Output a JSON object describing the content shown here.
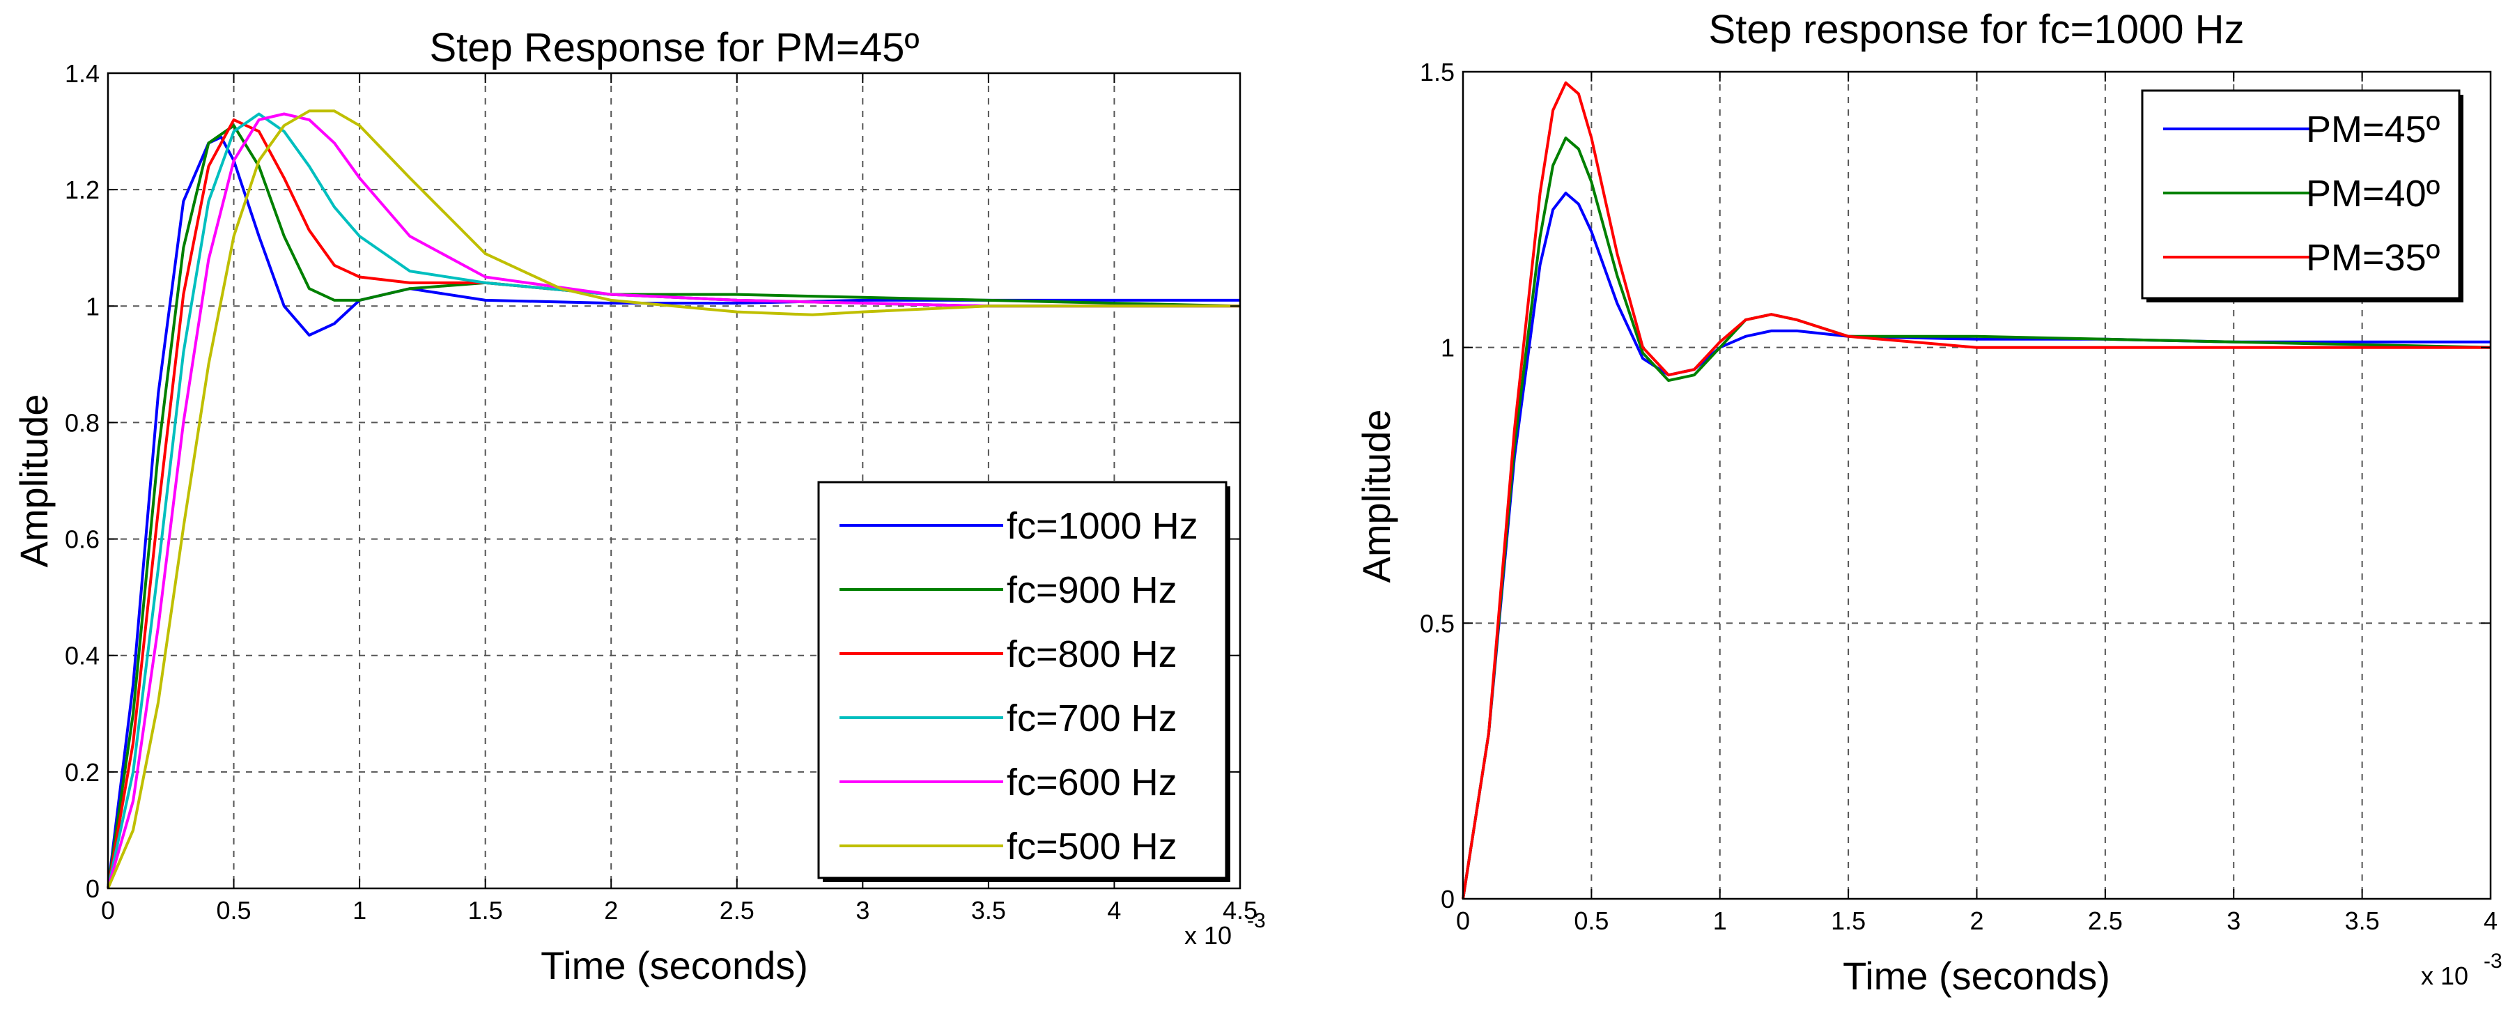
{
  "chart_data": [
    {
      "type": "line",
      "title": "Step Response for PM=45º",
      "xlabel": "Time (seconds)",
      "ylabel": "Amplitude",
      "x_multiplier": "x 10",
      "x_multiplier_exp": "-3",
      "xlim": [
        0,
        4.5
      ],
      "ylim": [
        0,
        1.4
      ],
      "grid": true,
      "legend_location": "bottom-right",
      "x_ticks": [
        0,
        0.5,
        1,
        1.5,
        2,
        2.5,
        3,
        3.5,
        4,
        4.5
      ],
      "x_tick_labels": [
        "0",
        "0.5",
        "1",
        "1.5",
        "2",
        "2.5",
        "3",
        "3.5",
        "4",
        "4.5"
      ],
      "y_ticks": [
        0,
        0.2,
        0.4,
        0.6,
        0.8,
        1,
        1.2,
        1.4
      ],
      "y_tick_labels": [
        "0",
        "0.2",
        "0.4",
        "0.6",
        "0.8",
        "1",
        "1.2",
        "1.4"
      ],
      "series": [
        {
          "name": "fc=1000 Hz",
          "color": "#0000ff",
          "x": [
            0,
            0.1,
            0.2,
            0.3,
            0.4,
            0.45,
            0.5,
            0.6,
            0.7,
            0.8,
            0.9,
            1.0,
            1.2,
            1.5,
            2.0,
            2.5,
            3.0,
            3.5,
            4.0,
            4.5
          ],
          "values": [
            0,
            0.35,
            0.85,
            1.18,
            1.28,
            1.29,
            1.25,
            1.12,
            1.0,
            0.95,
            0.97,
            1.01,
            1.03,
            1.01,
            1.005,
            1.005,
            1.01,
            1.01,
            1.01,
            1.01
          ]
        },
        {
          "name": "fc=900 Hz",
          "color": "#008000",
          "x": [
            0,
            0.1,
            0.2,
            0.3,
            0.4,
            0.5,
            0.6,
            0.7,
            0.8,
            0.9,
            1.0,
            1.2,
            1.5,
            2.0,
            2.5,
            3.0,
            3.5,
            4.0,
            4.5
          ],
          "values": [
            0,
            0.3,
            0.75,
            1.1,
            1.28,
            1.31,
            1.24,
            1.12,
            1.03,
            1.01,
            1.01,
            1.03,
            1.04,
            1.02,
            1.02,
            1.015,
            1.01,
            1.005,
            1.0
          ]
        },
        {
          "name": "fc=800 Hz",
          "color": "#ff0000",
          "x": [
            0,
            0.1,
            0.2,
            0.3,
            0.4,
            0.5,
            0.6,
            0.7,
            0.8,
            0.9,
            1.0,
            1.2,
            1.5,
            2.0,
            2.5,
            3.0,
            3.5,
            4.0,
            4.5
          ],
          "values": [
            0,
            0.25,
            0.65,
            1.02,
            1.24,
            1.32,
            1.3,
            1.22,
            1.13,
            1.07,
            1.05,
            1.04,
            1.04,
            1.02,
            1.01,
            1.005,
            1.0,
            1.0,
            1.0
          ]
        },
        {
          "name": "fc=700 Hz",
          "color": "#00bfbf",
          "x": [
            0,
            0.1,
            0.2,
            0.3,
            0.4,
            0.5,
            0.6,
            0.7,
            0.8,
            0.9,
            1.0,
            1.2,
            1.5,
            2.0,
            2.5,
            3.0,
            3.5,
            4.0,
            4.5
          ],
          "values": [
            0,
            0.2,
            0.55,
            0.92,
            1.18,
            1.3,
            1.33,
            1.3,
            1.24,
            1.17,
            1.12,
            1.06,
            1.04,
            1.02,
            1.01,
            1.005,
            1.0,
            1.0,
            1.0
          ]
        },
        {
          "name": "fc=600 Hz",
          "color": "#ff00ff",
          "x": [
            0,
            0.1,
            0.2,
            0.3,
            0.4,
            0.5,
            0.6,
            0.7,
            0.8,
            0.9,
            1.0,
            1.2,
            1.5,
            2.0,
            2.5,
            3.0,
            3.5,
            4.0,
            4.5
          ],
          "values": [
            0,
            0.15,
            0.45,
            0.8,
            1.08,
            1.25,
            1.32,
            1.33,
            1.32,
            1.28,
            1.22,
            1.12,
            1.05,
            1.02,
            1.01,
            1.005,
            1.0,
            1.0,
            1.0
          ]
        },
        {
          "name": "fc=500 Hz",
          "color": "#bfbf00",
          "x": [
            0,
            0.1,
            0.2,
            0.3,
            0.4,
            0.5,
            0.6,
            0.7,
            0.8,
            0.9,
            1.0,
            1.2,
            1.5,
            1.8,
            2.0,
            2.5,
            2.8,
            3.0,
            3.5,
            4.0,
            4.5
          ],
          "values": [
            0,
            0.1,
            0.32,
            0.62,
            0.9,
            1.12,
            1.25,
            1.31,
            1.335,
            1.335,
            1.31,
            1.22,
            1.09,
            1.03,
            1.01,
            0.99,
            0.985,
            0.99,
            1.0,
            1.0,
            1.0
          ]
        }
      ]
    },
    {
      "type": "line",
      "title": "Step response for fc=1000 Hz",
      "xlabel": "Time (seconds)",
      "ylabel": "Amplitude",
      "x_multiplier": "x 10",
      "x_multiplier_exp": "-3",
      "xlim": [
        0,
        4
      ],
      "ylim": [
        0,
        1.5
      ],
      "grid": true,
      "legend_location": "top-right",
      "x_ticks": [
        0,
        0.5,
        1,
        1.5,
        2,
        2.5,
        3,
        3.5,
        4
      ],
      "x_tick_labels": [
        "0",
        "0.5",
        "1",
        "1.5",
        "2",
        "2.5",
        "3",
        "3.5",
        "4"
      ],
      "y_ticks": [
        0,
        0.5,
        1,
        1.5
      ],
      "y_tick_labels": [
        "0",
        "0.5",
        "1",
        "1.5"
      ],
      "series": [
        {
          "name": "PM=45º",
          "color": "#0000ff",
          "x": [
            0,
            0.1,
            0.2,
            0.3,
            0.35,
            0.4,
            0.45,
            0.5,
            0.6,
            0.7,
            0.8,
            0.9,
            1.0,
            1.1,
            1.2,
            1.3,
            1.5,
            2.0,
            2.5,
            3.0,
            3.5,
            4.0
          ],
          "values": [
            0,
            0.3,
            0.8,
            1.15,
            1.25,
            1.28,
            1.26,
            1.21,
            1.08,
            0.98,
            0.95,
            0.96,
            1.0,
            1.02,
            1.03,
            1.03,
            1.02,
            1.015,
            1.015,
            1.01,
            1.01,
            1.01
          ]
        },
        {
          "name": "PM=40º",
          "color": "#008000",
          "x": [
            0,
            0.1,
            0.2,
            0.3,
            0.35,
            0.4,
            0.45,
            0.5,
            0.6,
            0.7,
            0.8,
            0.9,
            1.0,
            1.1,
            1.2,
            1.3,
            1.5,
            2.0,
            2.5,
            3.0,
            3.5,
            4.0
          ],
          "values": [
            0,
            0.3,
            0.82,
            1.2,
            1.33,
            1.38,
            1.36,
            1.3,
            1.13,
            0.99,
            0.94,
            0.95,
            1.0,
            1.05,
            1.06,
            1.05,
            1.02,
            1.02,
            1.015,
            1.01,
            1.005,
            1.0
          ]
        },
        {
          "name": "PM=35º",
          "color": "#ff0000",
          "x": [
            0,
            0.1,
            0.2,
            0.3,
            0.35,
            0.4,
            0.45,
            0.5,
            0.6,
            0.7,
            0.8,
            0.9,
            1.0,
            1.1,
            1.2,
            1.3,
            1.5,
            2.0,
            2.5,
            3.0,
            3.5,
            4.0
          ],
          "values": [
            0,
            0.3,
            0.85,
            1.28,
            1.43,
            1.48,
            1.46,
            1.38,
            1.17,
            1.0,
            0.95,
            0.96,
            1.01,
            1.05,
            1.06,
            1.05,
            1.02,
            1.0,
            1.0,
            1.0,
            1.0,
            1.0
          ]
        }
      ]
    }
  ]
}
